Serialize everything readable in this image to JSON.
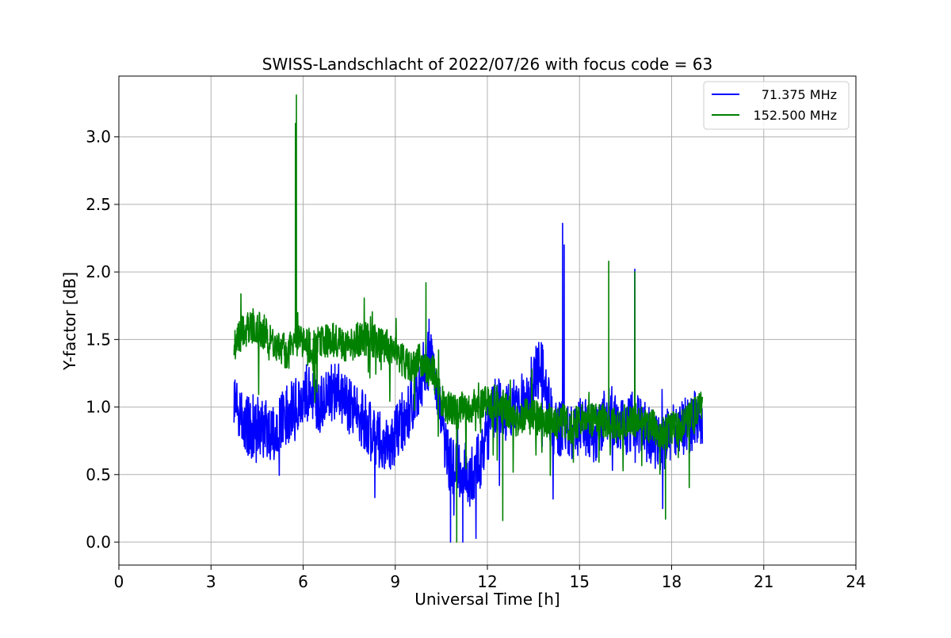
{
  "chart_data": {
    "type": "line",
    "title": "SWISS-Landschlacht of 2022/07/26 with focus code = 63",
    "xlabel": "Universal Time [h]",
    "ylabel": "Y-factor [dB]",
    "xlim": [
      0,
      24
    ],
    "ylim": [
      -0.17,
      3.45
    ],
    "x_ticks": [
      0,
      3,
      6,
      9,
      12,
      15,
      18,
      21,
      24
    ],
    "x_tick_labels": [
      "0",
      "3",
      "6",
      "9",
      "12",
      "15",
      "18",
      "21",
      "24"
    ],
    "y_ticks": [
      0.0,
      0.5,
      1.0,
      1.5,
      2.0,
      2.5,
      3.0
    ],
    "y_tick_labels": [
      "0.0",
      "0.5",
      "1.0",
      "1.5",
      "2.0",
      "2.5",
      "3.0"
    ],
    "grid": true,
    "legend_position": "top-right",
    "series": [
      {
        "name": "71.375 MHz",
        "color": "#0000ff",
        "x": [
          3.75,
          4.0,
          4.25,
          4.5,
          4.75,
          5.0,
          5.25,
          5.5,
          5.75,
          6.0,
          6.25,
          6.5,
          6.75,
          7.0,
          7.25,
          7.5,
          7.75,
          8.0,
          8.25,
          8.5,
          8.75,
          9.0,
          9.25,
          9.5,
          9.75,
          10.0,
          10.25,
          10.5,
          10.75,
          11.0,
          11.25,
          11.5,
          11.75,
          12.0,
          12.25,
          12.5,
          12.75,
          13.0,
          13.25,
          13.5,
          13.75,
          14.0,
          14.25,
          14.5,
          14.75,
          15.0,
          15.25,
          15.5,
          15.75,
          16.0,
          16.25,
          16.5,
          16.75,
          17.0,
          17.25,
          17.5,
          17.75,
          18.0,
          18.25,
          18.5,
          18.75,
          19.0
        ],
        "y": [
          1.0,
          0.9,
          0.85,
          0.8,
          0.85,
          0.8,
          0.9,
          0.95,
          1.0,
          1.1,
          1.1,
          1.05,
          1.1,
          1.1,
          1.1,
          1.0,
          0.95,
          0.9,
          0.8,
          0.75,
          0.7,
          0.8,
          0.9,
          1.0,
          1.1,
          1.35,
          1.3,
          0.9,
          0.6,
          0.55,
          0.55,
          0.5,
          0.6,
          0.8,
          1.0,
          1.0,
          1.0,
          1.0,
          1.05,
          1.2,
          1.3,
          1.0,
          0.8,
          0.9,
          0.8,
          0.85,
          0.85,
          0.8,
          0.9,
          0.95,
          0.9,
          0.85,
          0.9,
          0.85,
          0.8,
          0.75,
          0.75,
          0.8,
          0.85,
          0.85,
          0.9,
          0.85
        ],
        "peaks": [
          [
            14.45,
            2.36
          ],
          [
            14.5,
            2.2
          ],
          [
            16.8,
            2.02
          ],
          [
            10.1,
            1.65
          ],
          [
            10.8,
            0.0
          ],
          [
            11.2,
            0.0
          ]
        ]
      },
      {
        "name": "152.500 MHz",
        "color": "#008000",
        "x": [
          3.75,
          4.0,
          4.25,
          4.5,
          4.75,
          5.0,
          5.25,
          5.5,
          5.75,
          6.0,
          6.25,
          6.5,
          6.75,
          7.0,
          7.25,
          7.5,
          7.75,
          8.0,
          8.25,
          8.5,
          8.75,
          9.0,
          9.25,
          9.5,
          9.75,
          10.0,
          10.25,
          10.5,
          10.75,
          11.0,
          11.25,
          11.5,
          11.75,
          12.0,
          12.25,
          12.5,
          12.75,
          13.0,
          13.25,
          13.5,
          13.75,
          14.0,
          14.25,
          14.5,
          14.75,
          15.0,
          15.25,
          15.5,
          15.75,
          16.0,
          16.25,
          16.5,
          16.75,
          17.0,
          17.25,
          17.5,
          17.75,
          18.0,
          18.25,
          18.5,
          18.75,
          19.0
        ],
        "y": [
          1.45,
          1.55,
          1.6,
          1.6,
          1.55,
          1.5,
          1.45,
          1.4,
          1.5,
          1.5,
          1.45,
          1.45,
          1.5,
          1.5,
          1.45,
          1.45,
          1.5,
          1.5,
          1.5,
          1.45,
          1.45,
          1.4,
          1.35,
          1.3,
          1.35,
          1.3,
          1.25,
          1.05,
          1.0,
          0.95,
          1.0,
          1.0,
          1.0,
          1.05,
          1.05,
          1.0,
          0.95,
          0.9,
          0.95,
          0.95,
          0.9,
          0.9,
          0.85,
          0.9,
          0.85,
          0.9,
          0.9,
          0.9,
          0.9,
          0.9,
          0.85,
          0.9,
          0.9,
          0.9,
          0.85,
          0.85,
          0.8,
          0.85,
          0.85,
          0.9,
          0.95,
          1.0
        ],
        "peaks": [
          [
            5.78,
            3.31
          ],
          [
            5.75,
            3.1
          ],
          [
            15.95,
            2.08
          ],
          [
            16.8,
            2.0
          ],
          [
            10.0,
            1.92
          ],
          [
            11.0,
            0.0
          ],
          [
            12.5,
            0.16
          ],
          [
            17.8,
            0.17
          ]
        ]
      }
    ]
  }
}
